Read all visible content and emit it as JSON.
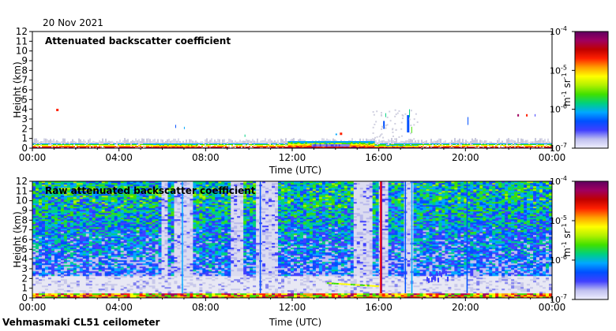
{
  "date_label": "20 Nov 2021",
  "footer_label": "Vehmasmaki CL51 ceilometer",
  "colormap_stops": [
    "#f0f0ff",
    "#bfbfef",
    "#4040ff",
    "#0050ff",
    "#00a8ff",
    "#00d080",
    "#40e000",
    "#b0f000",
    "#ffff00",
    "#ffa000",
    "#ff2000",
    "#c00000",
    "#a00060",
    "#600060"
  ],
  "chart_data": [
    {
      "type": "heatmap",
      "title": "Attenuated backscatter coefficient",
      "xlabel": "Time (UTC)",
      "ylabel": "Height (km)",
      "xticks": [
        "00:00",
        "04:00",
        "08:00",
        "12:00",
        "16:00",
        "20:00",
        "00:00"
      ],
      "yticks": [
        "0",
        "1",
        "2",
        "3",
        "4",
        "5",
        "6",
        "7",
        "8",
        "9",
        "10",
        "11",
        "12"
      ],
      "xlim_hours": [
        0,
        24
      ],
      "ylim_km": [
        0,
        12
      ],
      "colorbar": {
        "label_base": "m",
        "label_exp1": "-1",
        "label_mid": " sr",
        "label_exp2": "-1",
        "ticks": [
          {
            "base": "10",
            "exp": "-4"
          },
          {
            "base": "10",
            "exp": "-5"
          },
          {
            "base": "10",
            "exp": "-6"
          },
          {
            "base": "10",
            "exp": "-7"
          }
        ]
      }
    },
    {
      "type": "heatmap",
      "title": "Raw attenuated backscatter coefficient",
      "xlabel": "Time (UTC)",
      "ylabel": "Height (km)",
      "xticks": [
        "00:00",
        "04:00",
        "08:00",
        "12:00",
        "16:00",
        "20:00",
        "00:00"
      ],
      "yticks": [
        "0",
        "1",
        "2",
        "3",
        "4",
        "5",
        "6",
        "7",
        "8",
        "9",
        "10",
        "11",
        "12"
      ],
      "xlim_hours": [
        0,
        24
      ],
      "ylim_km": [
        0,
        12
      ],
      "colorbar": {
        "label_base": "m",
        "label_exp1": "-1",
        "label_mid": " sr",
        "label_exp2": "-1",
        "ticks": [
          {
            "base": "10",
            "exp": "-4"
          },
          {
            "base": "10",
            "exp": "-5"
          },
          {
            "base": "10",
            "exp": "-6"
          },
          {
            "base": "10",
            "exp": "-7"
          }
        ]
      }
    }
  ]
}
